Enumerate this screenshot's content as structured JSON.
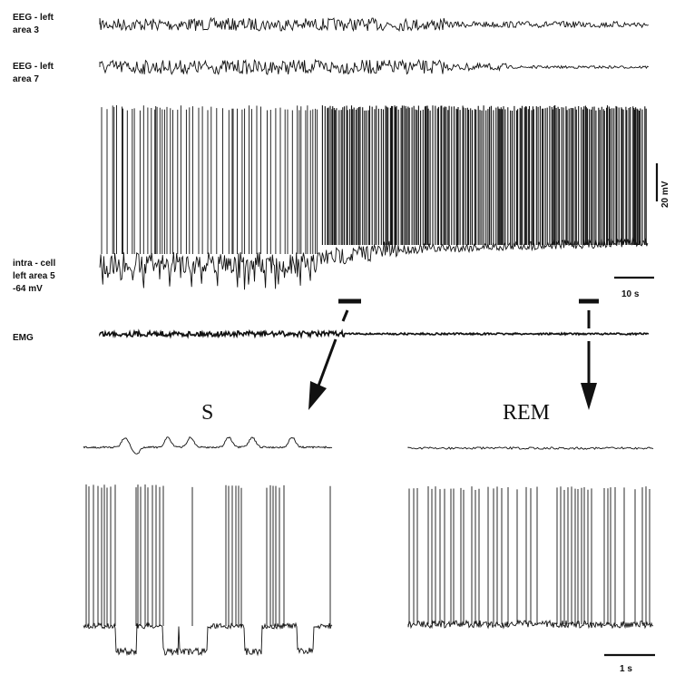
{
  "colors": {
    "ink": "#111111",
    "background": "#ffffff"
  },
  "labels": {
    "eeg_area3": [
      "EEG - left",
      "area 3"
    ],
    "eeg_area7": [
      "EEG - left",
      "area 7"
    ],
    "intracell": [
      "intra - cell",
      "left   area 5",
      "-64 mV"
    ],
    "emg": "EMG",
    "scale_mv": "20 mV",
    "scale_time_top": "10 s",
    "panel_s": "S",
    "panel_rem": "REM",
    "scale_time_bottom": "1 s"
  },
  "icons": [
    "arrow-down-left-icon",
    "arrow-down-icon"
  ]
}
